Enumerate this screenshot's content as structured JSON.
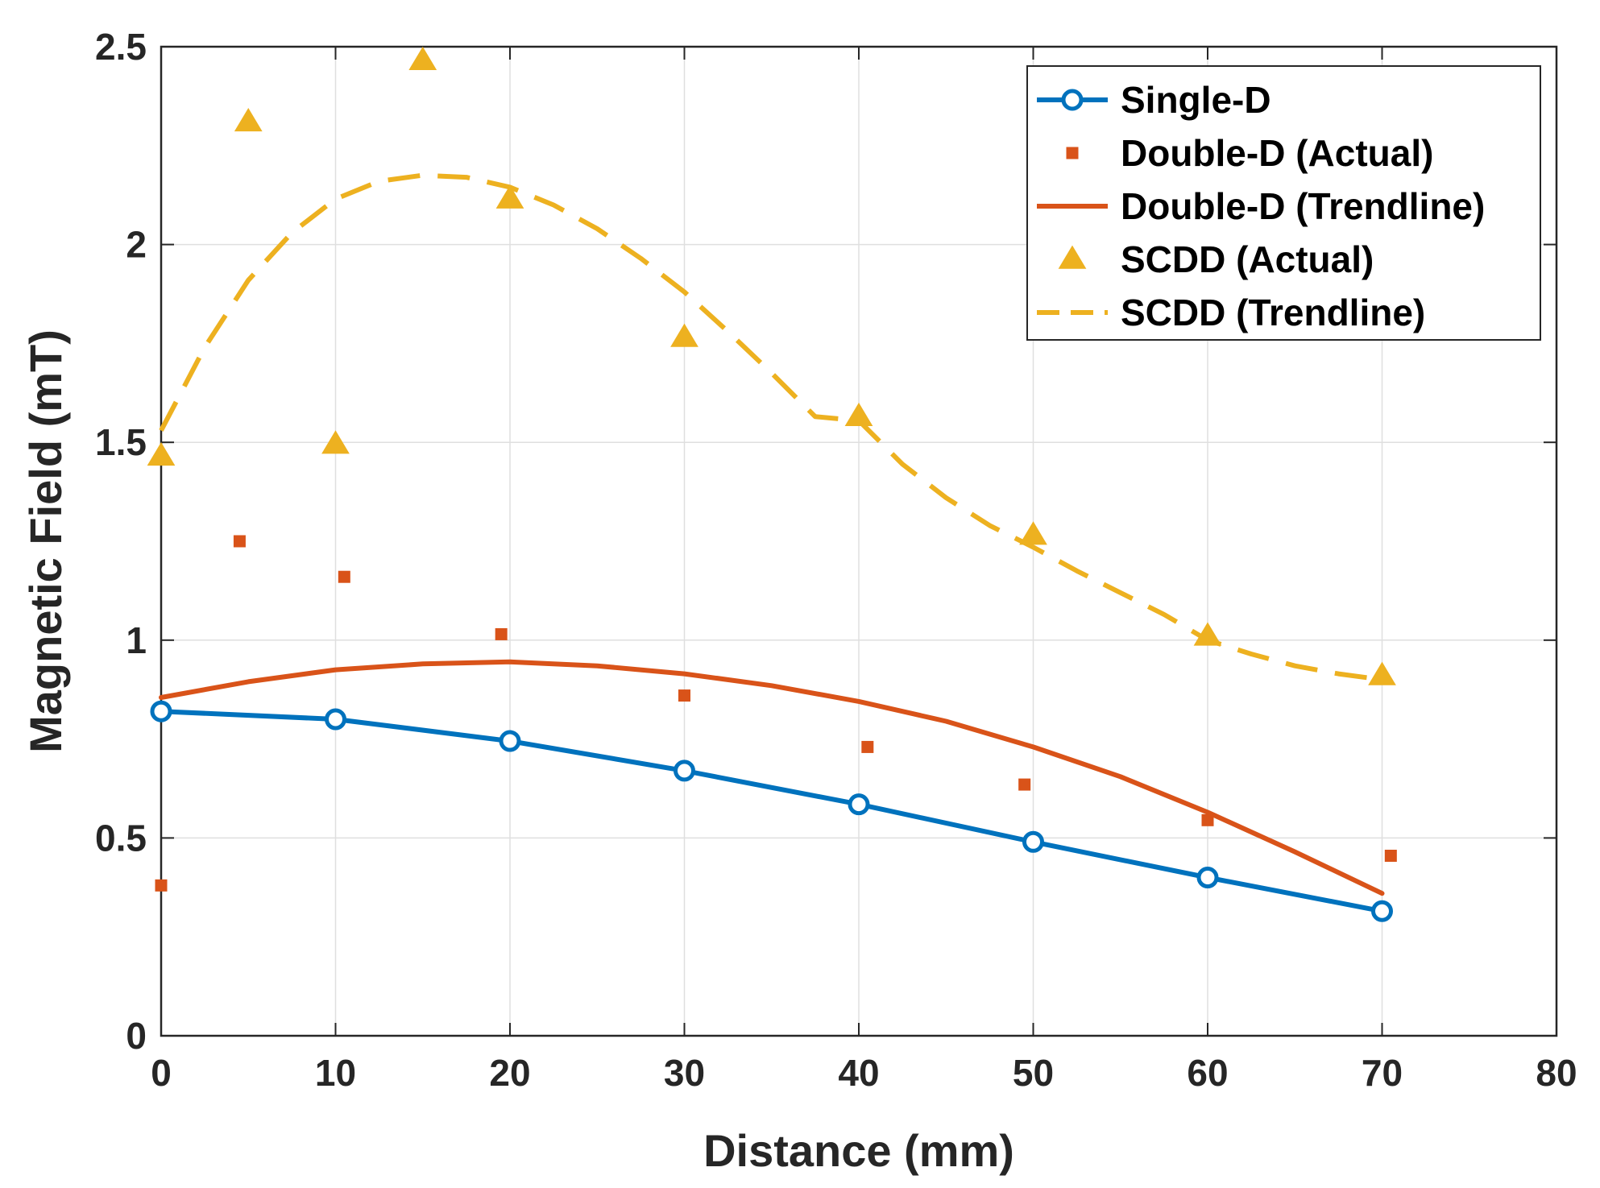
{
  "chart_data": {
    "type": "line",
    "title": "",
    "xlabel": "Distance (mm)",
    "ylabel": "Magnetic Field (mT)",
    "xlim": [
      0,
      80
    ],
    "ylim": [
      0,
      2.5
    ],
    "xticks": [
      0,
      10,
      20,
      30,
      40,
      50,
      60,
      70,
      80
    ],
    "xtick_labels": [
      "0",
      "10",
      "20",
      "30",
      "40",
      "50",
      "60",
      "70",
      "80"
    ],
    "yticks": [
      0,
      0.5,
      1,
      1.5,
      2,
      2.5
    ],
    "ytick_labels": [
      "0",
      "0.5",
      "1",
      "1.5",
      "2",
      "2.5"
    ],
    "grid": true,
    "legend_position": "top-right",
    "series": [
      {
        "name": "Single-D",
        "style": "line-circle",
        "color": "#0072BD",
        "x": [
          0,
          10,
          20,
          30,
          40,
          50,
          60,
          70
        ],
        "y": [
          0.82,
          0.8,
          0.745,
          0.67,
          0.585,
          0.49,
          0.4,
          0.315
        ]
      },
      {
        "name": "Double-D (Actual)",
        "style": "square",
        "color": "#D95319",
        "x": [
          0,
          4.5,
          10.5,
          19.5,
          30,
          40.5,
          49.5,
          60,
          70.5
        ],
        "y": [
          0.38,
          1.25,
          1.16,
          1.015,
          0.86,
          0.73,
          0.635,
          0.545,
          0.455
        ]
      },
      {
        "name": "Double-D (Trendline)",
        "style": "line",
        "color": "#D95319",
        "x": [
          0,
          5,
          10,
          15,
          20,
          25,
          30,
          35,
          40,
          45,
          50,
          55,
          60,
          65,
          70
        ],
        "y": [
          0.855,
          0.895,
          0.925,
          0.94,
          0.945,
          0.935,
          0.915,
          0.885,
          0.845,
          0.795,
          0.73,
          0.655,
          0.565,
          0.465,
          0.36
        ]
      },
      {
        "name": "SCDD (Actual)",
        "style": "triangle",
        "color": "#EDB120",
        "x": [
          0,
          5,
          10,
          15,
          20,
          30,
          40,
          50,
          60,
          70
        ],
        "y": [
          1.465,
          2.31,
          1.495,
          2.465,
          2.115,
          1.765,
          1.565,
          1.265,
          1.01,
          0.91
        ]
      },
      {
        "name": "SCDD (Trendline)",
        "style": "dashed",
        "color": "#EDB120",
        "x": [
          0,
          2.5,
          5,
          7.5,
          10,
          12.5,
          15,
          17.5,
          20,
          22.5,
          25,
          27.5,
          30,
          32.5,
          35,
          37.5,
          40,
          42.5,
          45,
          47.5,
          50,
          52.5,
          55,
          57.5,
          60,
          62.5,
          65,
          67.5,
          70
        ],
        "y": [
          1.53,
          1.74,
          1.91,
          2.03,
          2.115,
          2.16,
          2.175,
          2.17,
          2.145,
          2.1,
          2.04,
          1.965,
          1.88,
          1.78,
          1.675,
          1.565,
          1.555,
          1.445,
          1.36,
          1.29,
          1.235,
          1.175,
          1.12,
          1.065,
          1.0,
          0.965,
          0.935,
          0.915,
          0.9
        ]
      }
    ]
  }
}
